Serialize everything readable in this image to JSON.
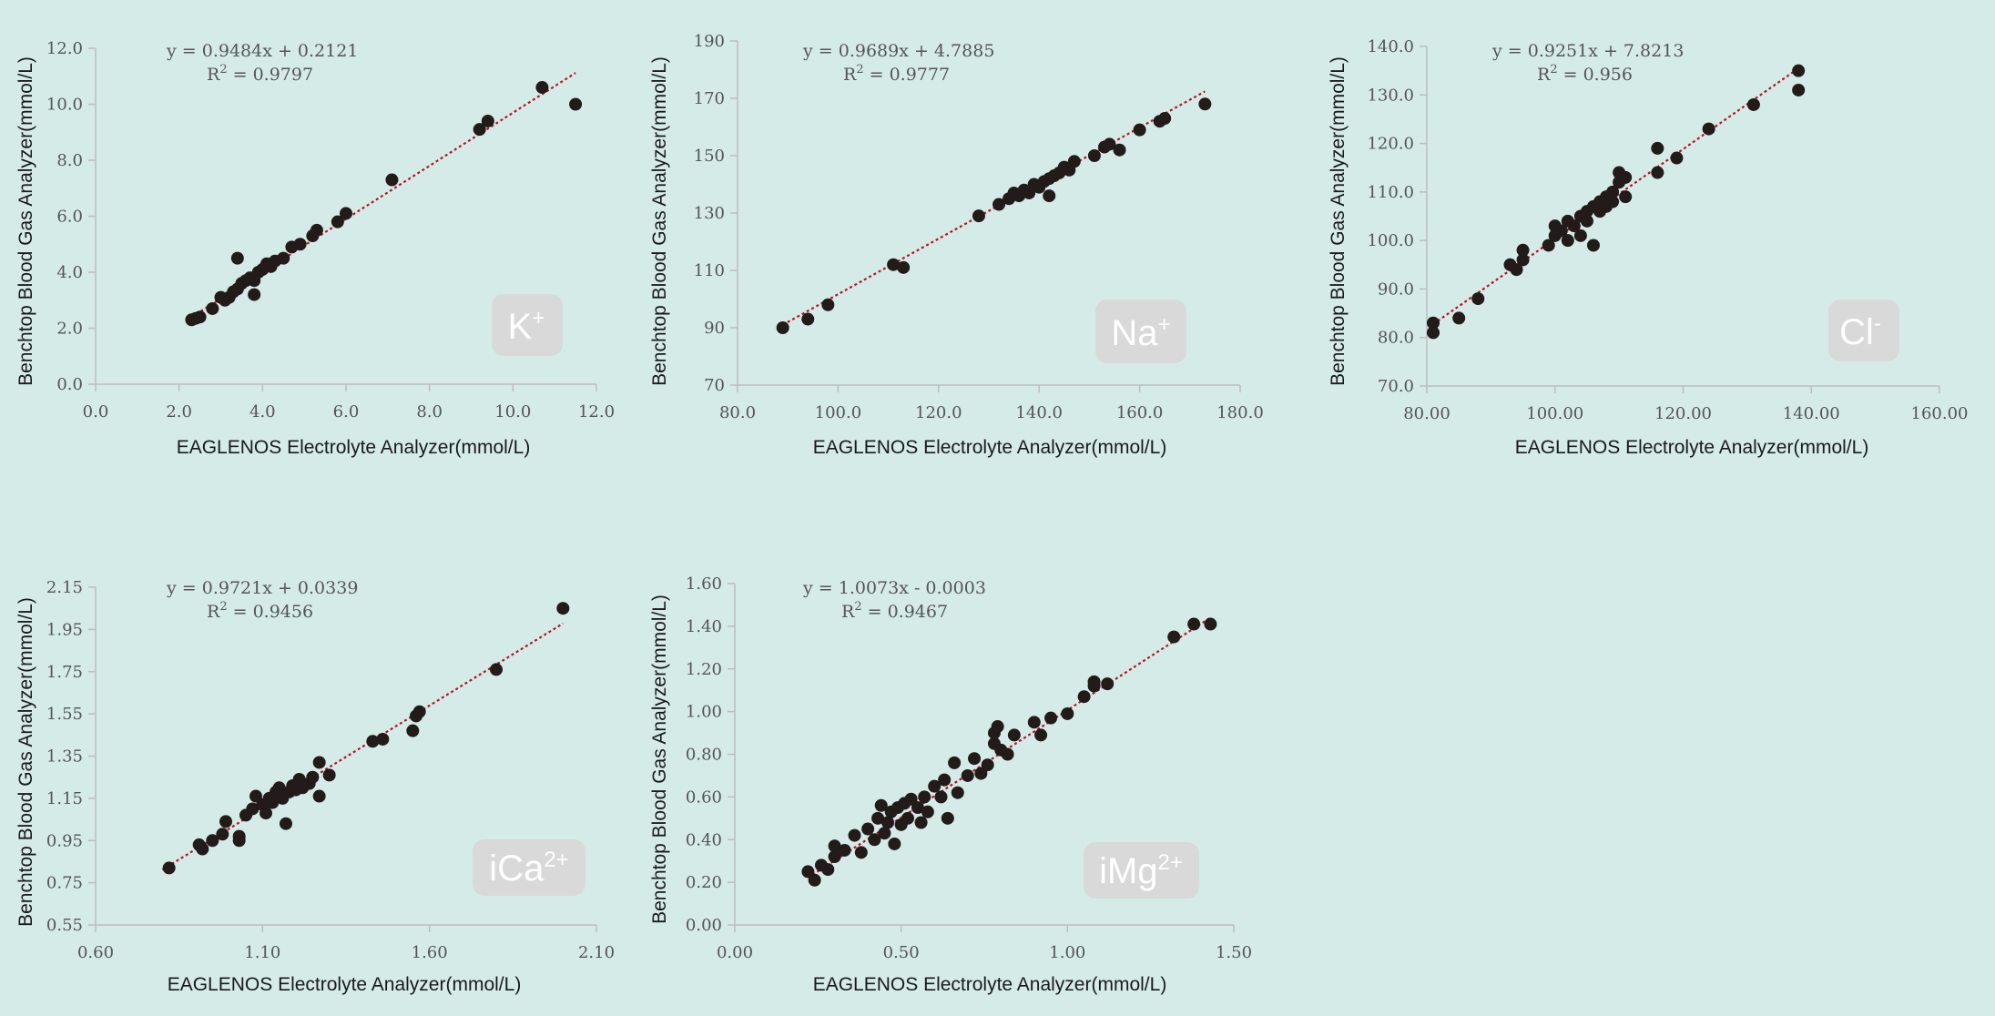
{
  "colors": {
    "background": "#d5ebe8",
    "point": "#231a1a",
    "trendline": "#b5132b",
    "badge": "#d9d9d9"
  },
  "chart_data": [
    {
      "type": "scatter",
      "analyte": "K",
      "badge": {
        "base": "K",
        "sup": "+"
      },
      "equation": "y = 0.9484x + 0.2121",
      "r2_label": "R",
      "r2_sup": "2",
      "r2_value": " = 0.9797",
      "slope": 0.9484,
      "intercept": 0.2121,
      "fit_range": [
        2.3,
        11.5
      ],
      "xlabel": "EAGLENOS Electrolyte Analyzer(mmol/L)",
      "ylabel": "Benchtop Blood Gas Analyzer(mmol/L)",
      "xlim": [
        0,
        12
      ],
      "ylim": [
        0,
        12
      ],
      "xticks": [
        0,
        2,
        4,
        6,
        8,
        10,
        12
      ],
      "yticks": [
        0,
        2,
        4,
        6,
        8,
        10,
        12
      ],
      "xtick_labels": [
        "0.0",
        "2.0",
        "4.0",
        "6.0",
        "8.0",
        "10.0",
        "12.0"
      ],
      "ytick_labels": [
        "0.0",
        "2.0",
        "4.0",
        "6.0",
        "8.0",
        "10.0",
        "12.0"
      ],
      "points": [
        [
          2.3,
          2.3
        ],
        [
          2.4,
          2.35
        ],
        [
          2.5,
          2.4
        ],
        [
          2.8,
          2.7
        ],
        [
          3.0,
          3.1
        ],
        [
          3.1,
          3.0
        ],
        [
          3.2,
          3.1
        ],
        [
          3.3,
          3.3
        ],
        [
          3.4,
          3.4
        ],
        [
          3.5,
          3.6
        ],
        [
          3.6,
          3.7
        ],
        [
          3.4,
          4.5
        ],
        [
          3.7,
          3.8
        ],
        [
          3.8,
          3.7
        ],
        [
          3.9,
          4.0
        ],
        [
          4.0,
          4.1
        ],
        [
          4.1,
          4.3
        ],
        [
          3.8,
          3.2
        ],
        [
          4.2,
          4.2
        ],
        [
          4.3,
          4.4
        ],
        [
          4.5,
          4.5
        ],
        [
          4.7,
          4.9
        ],
        [
          4.9,
          5.0
        ],
        [
          5.2,
          5.3
        ],
        [
          5.3,
          5.5
        ],
        [
          5.8,
          5.8
        ],
        [
          6.0,
          6.1
        ],
        [
          7.1,
          7.3
        ],
        [
          9.2,
          9.1
        ],
        [
          9.4,
          9.4
        ],
        [
          10.7,
          10.6
        ],
        [
          11.5,
          10.0
        ]
      ]
    },
    {
      "type": "scatter",
      "analyte": "Na",
      "badge": {
        "base": "Na",
        "sup": "+"
      },
      "equation": "y = 0.9689x + 4.7885",
      "r2_label": "R",
      "r2_sup": "2",
      "r2_value": " = 0.9777",
      "slope": 0.9689,
      "intercept": 4.7885,
      "fit_range": [
        89,
        173
      ],
      "xlabel": "EAGLENOS Electrolyte Analyzer(mmol/L)",
      "ylabel": "Benchtop Blood Gas Analyzer(mmol/L)",
      "xlim": [
        80,
        180
      ],
      "ylim": [
        70,
        190
      ],
      "xticks": [
        80,
        100,
        120,
        140,
        160,
        180
      ],
      "yticks": [
        70,
        90,
        110,
        130,
        150,
        170,
        190
      ],
      "xtick_labels": [
        "80.0",
        "100.0",
        "120.0",
        "140.0",
        "160.0",
        "180.0"
      ],
      "ytick_labels": [
        "70",
        "90",
        "110",
        "130",
        "150",
        "170",
        "190"
      ],
      "points": [
        [
          89,
          90
        ],
        [
          94,
          93
        ],
        [
          98,
          98
        ],
        [
          111,
          112
        ],
        [
          113,
          111
        ],
        [
          128,
          129
        ],
        [
          132,
          133
        ],
        [
          134,
          135
        ],
        [
          135,
          137
        ],
        [
          136,
          136
        ],
        [
          137,
          138
        ],
        [
          138,
          137
        ],
        [
          139,
          140
        ],
        [
          140,
          139
        ],
        [
          141,
          141
        ],
        [
          142,
          136
        ],
        [
          142,
          142
        ],
        [
          143,
          143
        ],
        [
          144,
          144
        ],
        [
          145,
          146
        ],
        [
          146,
          145
        ],
        [
          147,
          148
        ],
        [
          151,
          150
        ],
        [
          153,
          153
        ],
        [
          154,
          154
        ],
        [
          156,
          152
        ],
        [
          160,
          159
        ],
        [
          164,
          162
        ],
        [
          165,
          163
        ],
        [
          173,
          168
        ]
      ]
    },
    {
      "type": "scatter",
      "analyte": "Cl",
      "badge": {
        "base": "Cl",
        "sup": "-"
      },
      "equation": "y = 0.9251x + 7.8213",
      "r2_label": "R",
      "r2_sup": "2",
      "r2_value": " = 0.956",
      "slope": 0.9251,
      "intercept": 7.8213,
      "fit_range": [
        81,
        138
      ],
      "xlabel": "EAGLENOS Electrolyte Analyzer(mmol/L)",
      "ylabel": "Benchtop Blood Gas Analyzer(mmol/L)",
      "xlim": [
        80,
        160
      ],
      "ylim": [
        70,
        140
      ],
      "xticks": [
        80,
        100,
        120,
        140,
        160
      ],
      "yticks": [
        70,
        80,
        90,
        100,
        110,
        120,
        130,
        140
      ],
      "xtick_labels": [
        "80.00",
        "100.00",
        "120.00",
        "140.00",
        "160.00"
      ],
      "ytick_labels": [
        "70.0",
        "80.0",
        "90.0",
        "100.0",
        "110.0",
        "120.0",
        "130.0",
        "140.0"
      ],
      "points": [
        [
          81,
          83
        ],
        [
          81,
          81
        ],
        [
          85,
          84
        ],
        [
          88,
          88
        ],
        [
          93,
          95
        ],
        [
          94,
          94
        ],
        [
          95,
          96
        ],
        [
          95,
          98
        ],
        [
          99,
          99
        ],
        [
          100,
          101
        ],
        [
          100,
          103
        ],
        [
          101,
          102
        ],
        [
          102,
          100
        ],
        [
          102,
          104
        ],
        [
          103,
          103
        ],
        [
          104,
          101
        ],
        [
          104,
          105
        ],
        [
          105,
          106
        ],
        [
          105,
          104
        ],
        [
          106,
          99
        ],
        [
          106,
          107
        ],
        [
          107,
          106
        ],
        [
          107,
          108
        ],
        [
          108,
          107
        ],
        [
          108,
          109
        ],
        [
          109,
          110
        ],
        [
          109,
          108
        ],
        [
          110,
          112
        ],
        [
          110,
          114
        ],
        [
          111,
          113
        ],
        [
          111,
          109
        ],
        [
          116,
          119
        ],
        [
          116,
          114
        ],
        [
          119,
          117
        ],
        [
          124,
          123
        ],
        [
          131,
          128
        ],
        [
          138,
          135
        ],
        [
          138,
          131
        ]
      ]
    },
    {
      "type": "scatter",
      "analyte": "iCa",
      "badge": {
        "base": "iCa",
        "sup": "2+"
      },
      "equation": "y = 0.9721x + 0.0339",
      "r2_label": "R",
      "r2_sup": "2",
      "r2_value": " = 0.9456",
      "slope": 0.9721,
      "intercept": 0.0339,
      "fit_range": [
        0.8,
        2.0
      ],
      "xlabel": "EAGLENOS Electrolyte Analyzer(mmol/L)",
      "ylabel": "Benchtop Blood Gas Analyzer(mmol/L)",
      "xlim": [
        0.6,
        2.1
      ],
      "ylim": [
        0.55,
        2.15
      ],
      "xticks": [
        0.6,
        1.1,
        1.6,
        2.1
      ],
      "yticks": [
        0.55,
        0.75,
        0.95,
        1.15,
        1.35,
        1.55,
        1.75,
        1.95,
        2.15
      ],
      "xtick_labels": [
        "0.60",
        "1.10",
        "1.60",
        "2.10"
      ],
      "ytick_labels": [
        "0.55",
        "0.75",
        "0.95",
        "1.15",
        "1.35",
        "1.55",
        "1.75",
        "1.95",
        "2.15"
      ],
      "points": [
        [
          0.82,
          0.82
        ],
        [
          0.91,
          0.93
        ],
        [
          0.92,
          0.91
        ],
        [
          0.95,
          0.95
        ],
        [
          0.98,
          0.98
        ],
        [
          0.99,
          1.04
        ],
        [
          1.03,
          0.97
        ],
        [
          1.03,
          0.95
        ],
        [
          1.05,
          1.07
        ],
        [
          1.07,
          1.1
        ],
        [
          1.08,
          1.16
        ],
        [
          1.1,
          1.12
        ],
        [
          1.11,
          1.08
        ],
        [
          1.12,
          1.15
        ],
        [
          1.13,
          1.13
        ],
        [
          1.14,
          1.18
        ],
        [
          1.15,
          1.2
        ],
        [
          1.16,
          1.15
        ],
        [
          1.17,
          1.03
        ],
        [
          1.18,
          1.18
        ],
        [
          1.19,
          1.21
        ],
        [
          1.2,
          1.19
        ],
        [
          1.21,
          1.24
        ],
        [
          1.22,
          1.2
        ],
        [
          1.24,
          1.22
        ],
        [
          1.25,
          1.25
        ],
        [
          1.27,
          1.16
        ],
        [
          1.27,
          1.32
        ],
        [
          1.3,
          1.26
        ],
        [
          1.43,
          1.42
        ],
        [
          1.46,
          1.43
        ],
        [
          1.55,
          1.47
        ],
        [
          1.56,
          1.54
        ],
        [
          1.57,
          1.56
        ],
        [
          1.8,
          1.76
        ],
        [
          2.0,
          2.05
        ]
      ]
    },
    {
      "type": "scatter",
      "analyte": "iMg",
      "badge": {
        "base": "iMg",
        "sup": "2+"
      },
      "equation": "y = 1.0073x - 0.0003",
      "r2_label": "R",
      "r2_sup": "2",
      "r2_value": " = 0.9467",
      "slope": 1.0073,
      "intercept": -0.0003,
      "fit_range": [
        0.22,
        1.43
      ],
      "xlabel": "EAGLENOS Electrolyte Analyzer(mmol/L)",
      "ylabel": "Benchtop Blood Gas Analyzer(mmol/L)",
      "xlim": [
        0,
        1.5
      ],
      "ylim": [
        0,
        1.6
      ],
      "xticks": [
        0,
        0.5,
        1.0,
        1.5
      ],
      "yticks": [
        0,
        0.2,
        0.4,
        0.6,
        0.8,
        1.0,
        1.2,
        1.4,
        1.6
      ],
      "xtick_labels": [
        "0.00",
        "0.50",
        "1.00",
        "1.50"
      ],
      "ytick_labels": [
        "0.00",
        "0.20",
        "0.40",
        "0.60",
        "0.80",
        "1.00",
        "1.20",
        "1.40",
        "1.60"
      ],
      "points": [
        [
          0.22,
          0.25
        ],
        [
          0.24,
          0.21
        ],
        [
          0.26,
          0.28
        ],
        [
          0.28,
          0.26
        ],
        [
          0.3,
          0.32
        ],
        [
          0.3,
          0.37
        ],
        [
          0.33,
          0.35
        ],
        [
          0.36,
          0.42
        ],
        [
          0.38,
          0.34
        ],
        [
          0.4,
          0.45
        ],
        [
          0.42,
          0.4
        ],
        [
          0.43,
          0.5
        ],
        [
          0.44,
          0.56
        ],
        [
          0.45,
          0.43
        ],
        [
          0.46,
          0.48
        ],
        [
          0.47,
          0.53
        ],
        [
          0.48,
          0.38
        ],
        [
          0.49,
          0.55
        ],
        [
          0.5,
          0.47
        ],
        [
          0.51,
          0.57
        ],
        [
          0.52,
          0.5
        ],
        [
          0.53,
          0.59
        ],
        [
          0.55,
          0.55
        ],
        [
          0.56,
          0.48
        ],
        [
          0.57,
          0.6
        ],
        [
          0.58,
          0.53
        ],
        [
          0.6,
          0.65
        ],
        [
          0.62,
          0.6
        ],
        [
          0.63,
          0.68
        ],
        [
          0.64,
          0.5
        ],
        [
          0.66,
          0.76
        ],
        [
          0.67,
          0.62
        ],
        [
          0.7,
          0.7
        ],
        [
          0.72,
          0.78
        ],
        [
          0.74,
          0.71
        ],
        [
          0.76,
          0.75
        ],
        [
          0.78,
          0.9
        ],
        [
          0.78,
          0.85
        ],
        [
          0.79,
          0.93
        ],
        [
          0.8,
          0.82
        ],
        [
          0.82,
          0.8
        ],
        [
          0.84,
          0.89
        ],
        [
          0.9,
          0.95
        ],
        [
          0.92,
          0.89
        ],
        [
          0.95,
          0.97
        ],
        [
          1.0,
          0.99
        ],
        [
          1.05,
          1.07
        ],
        [
          1.08,
          1.12
        ],
        [
          1.08,
          1.14
        ],
        [
          1.12,
          1.13
        ],
        [
          1.32,
          1.35
        ],
        [
          1.38,
          1.41
        ],
        [
          1.43,
          1.41
        ]
      ]
    }
  ]
}
